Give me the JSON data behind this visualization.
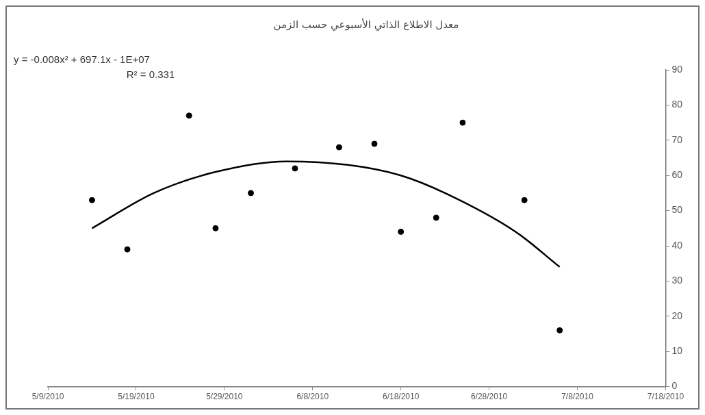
{
  "chart_data": {
    "type": "scatter",
    "title": "معدل الاطلاع الذاتي الأسبوعي حسب الزمن",
    "annotations": [
      "y = -0.008x² + 697.1x - 1E+07",
      "R² = 0.331"
    ],
    "x": [
      "2010-05-14",
      "2010-05-18",
      "2010-05-25",
      "2010-05-28",
      "2010-06-01",
      "2010-06-06",
      "2010-06-11",
      "2010-06-15",
      "2010-06-18",
      "2010-06-22",
      "2010-06-25",
      "2010-07-02",
      "2010-07-06"
    ],
    "series": [
      {
        "color": "#000000",
        "values": [
          53,
          39,
          77,
          45,
          55,
          62,
          68,
          69,
          44,
          48,
          75,
          53,
          16
        ]
      },
      {
        "type": "line",
        "color": "#000000",
        "x": [
          "2010-05-14",
          "2010-05-21",
          "2010-05-28",
          "2010-06-05",
          "2010-06-12",
          "2010-06-18",
          "2010-06-23",
          "2010-07-01",
          "2010-07-06"
        ],
        "values": [
          45,
          55,
          61,
          64,
          63,
          60,
          55,
          44,
          34
        ],
        "marker": "none"
      }
    ],
    "xlim": [
      "2010-05-09",
      "2010-07-18"
    ],
    "xticks": [
      {
        "value": "2010-05-09",
        "label": "5/9/2010"
      },
      {
        "value": "2010-05-19",
        "label": "5/19/2010"
      },
      {
        "value": "2010-05-29",
        "label": "5/29/2010"
      },
      {
        "value": "2010-06-08",
        "label": "6/8/2010"
      },
      {
        "value": "2010-06-18",
        "label": "6/18/2010"
      },
      {
        "value": "2010-06-28",
        "label": "6/28/2010"
      },
      {
        "value": "2010-07-08",
        "label": "7/8/2010"
      },
      {
        "value": "2010-07-18",
        "label": "7/18/2010"
      }
    ],
    "ylim": [
      0,
      90
    ],
    "yticks": [
      0,
      10,
      20,
      30,
      40,
      50,
      60,
      70,
      80,
      90
    ],
    "grid": false,
    "legend": false,
    "marker": "circle"
  }
}
